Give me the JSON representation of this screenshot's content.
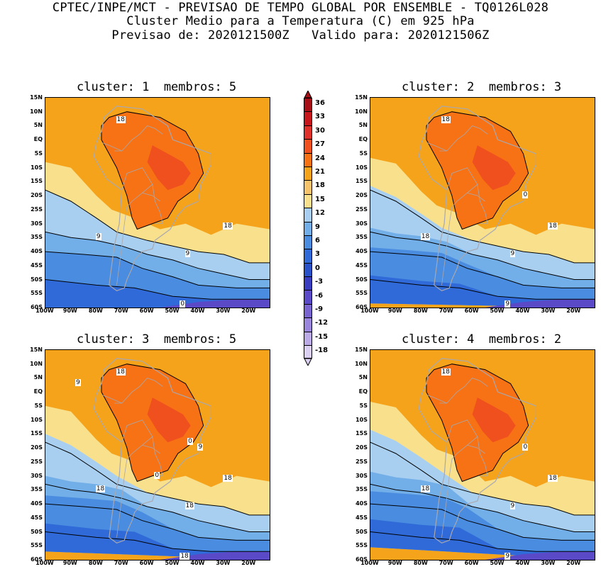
{
  "header": {
    "line1": "CPTEC/INPE/MCT - PREVISAO DE TEMPO GLOBAL POR ENSEMBLE - TQ0126L028",
    "line2": "Cluster Medio para a Temperatura (C) em 925 hPa",
    "line3": "Previsao de: 2020121500Z   Valido para: 2020121506Z"
  },
  "lat_ticks": [
    "15N",
    "10N",
    "5N",
    "EQ",
    "5S",
    "10S",
    "15S",
    "20S",
    "25S",
    "30S",
    "35S",
    "40S",
    "45S",
    "50S",
    "55S",
    "60S"
  ],
  "lon_ticks": [
    "100W",
    "90W",
    "80W",
    "70W",
    "60W",
    "50W",
    "40W",
    "30W",
    "20W"
  ],
  "colorbar": {
    "labels": [
      "36",
      "33",
      "30",
      "27",
      "24",
      "21",
      "18",
      "15",
      "12",
      "9",
      "6",
      "3",
      "0",
      "-3",
      "-6",
      "-9",
      "-12",
      "-15",
      "-18"
    ],
    "colors": [
      "#a50f15",
      "#c8171c",
      "#e0302a",
      "#f0501e",
      "#f77214",
      "#f6a31c",
      "#f6c46a",
      "#f8e08c",
      "#a8cff0",
      "#72aee8",
      "#4a8ce0",
      "#2f6ad8",
      "#2a52c8",
      "#3a3cc0",
      "#5a4ac8",
      "#7a64d0",
      "#9a86dc",
      "#bcaae6",
      "#dcd0f2"
    ]
  },
  "panels": [
    {
      "title": "cluster: 1  membros: 5",
      "contour_labels": [
        "18",
        "18",
        "9",
        "9",
        "0"
      ]
    },
    {
      "title": "cluster: 2  membros: 3",
      "contour_labels": [
        "18",
        "18",
        "18",
        "9",
        "9",
        "0"
      ]
    },
    {
      "title": "cluster: 3  membros: 5",
      "contour_labels": [
        "18",
        "18",
        "18",
        "18",
        "18",
        "9",
        "9",
        "0",
        "0"
      ]
    },
    {
      "title": "cluster: 4  membros: 2",
      "contour_labels": [
        "18",
        "18",
        "18",
        "9",
        "9",
        "0"
      ]
    }
  ]
}
